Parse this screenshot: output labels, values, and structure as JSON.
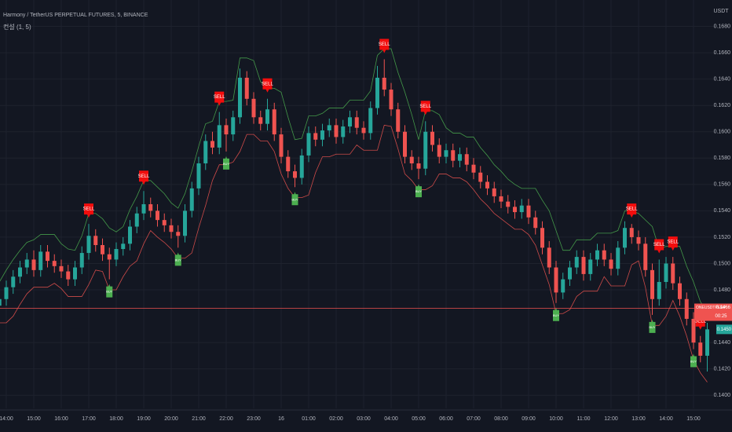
{
  "chart_data": {
    "type": "candlestick",
    "title": "Harmony / TetherUS PERPETUAL FUTURES, 5, BINANCE",
    "indicator": "컨설 (1, 5)",
    "currency": "USDT",
    "up_color": "#26a69a",
    "down_color": "#ef5350",
    "ylim": [
      0.139,
      0.17
    ],
    "yticks": [
      {
        "value": 0.14,
        "label": "0.1400"
      },
      {
        "value": 0.142,
        "label": "0.1420"
      },
      {
        "value": 0.144,
        "label": "0.1440"
      },
      {
        "value": 0.148,
        "label": "0.1480"
      },
      {
        "value": 0.15,
        "label": "0.1500"
      },
      {
        "value": 0.152,
        "label": "0.1520"
      },
      {
        "value": 0.154,
        "label": "0.1540"
      },
      {
        "value": 0.156,
        "label": "0.1560"
      },
      {
        "value": 0.158,
        "label": "0.1580"
      },
      {
        "value": 0.16,
        "label": "0.1600"
      },
      {
        "value": 0.162,
        "label": "0.1620"
      },
      {
        "value": 0.164,
        "label": "0.1640"
      },
      {
        "value": 0.166,
        "label": "0.1660"
      },
      {
        "value": 0.168,
        "label": "0.1680"
      }
    ],
    "grid": true,
    "categories": [
      null,
      "14:00",
      null,
      null,
      null,
      "15:00",
      null,
      null,
      null,
      "16:00",
      null,
      null,
      null,
      "17:00",
      null,
      null,
      null,
      "18:00",
      null,
      null,
      null,
      "19:00",
      null,
      null,
      null,
      "20:00",
      null,
      null,
      null,
      "21:00",
      null,
      null,
      null,
      "22:00",
      null,
      null,
      null,
      "23:00",
      null,
      null,
      null,
      "16",
      null,
      null,
      null,
      "01:00",
      null,
      null,
      null,
      "02:00",
      null,
      null,
      null,
      "03:00",
      null,
      null,
      null,
      "04:00",
      null,
      null,
      null,
      "05:00",
      null,
      null,
      null,
      "06:00",
      null,
      null,
      null,
      "07:00",
      null,
      null,
      null,
      "08:00",
      null,
      null,
      null,
      "09:00",
      null,
      null,
      null,
      "10:00",
      null,
      null,
      null,
      "11:00",
      null,
      null,
      null,
      "12:00",
      null,
      null,
      null,
      "13:00",
      null,
      null,
      null,
      "14:00",
      null,
      null,
      null,
      "15:00",
      null,
      null
    ],
    "ohlc": [
      [
        0.1468,
        0.1478,
        0.1463,
        0.1473
      ],
      [
        0.1473,
        0.1487,
        0.1468,
        0.1482
      ],
      [
        0.1482,
        0.1495,
        0.1477,
        0.149
      ],
      [
        0.149,
        0.1502,
        0.1485,
        0.1497
      ],
      [
        0.1497,
        0.1508,
        0.1492,
        0.1503
      ],
      [
        0.1503,
        0.151,
        0.149,
        0.1495
      ],
      [
        0.1495,
        0.1514,
        0.149,
        0.1509
      ],
      [
        0.1509,
        0.1514,
        0.1497,
        0.1502
      ],
      [
        0.1502,
        0.1507,
        0.1493,
        0.1498
      ],
      [
        0.1498,
        0.1503,
        0.1489,
        0.1494
      ],
      [
        0.1494,
        0.1499,
        0.1483,
        0.1488
      ],
      [
        0.1488,
        0.1502,
        0.1483,
        0.1497
      ],
      [
        0.1497,
        0.1513,
        0.1492,
        0.1508
      ],
      [
        0.1508,
        0.153,
        0.1503,
        0.1521
      ],
      [
        0.1521,
        0.1526,
        0.1509,
        0.1514
      ],
      [
        0.1514,
        0.1519,
        0.1502,
        0.1507
      ],
      [
        0.1507,
        0.1512,
        0.1488,
        0.1503
      ],
      [
        0.1503,
        0.1516,
        0.1498,
        0.1511
      ],
      [
        0.1511,
        0.152,
        0.1506,
        0.1515
      ],
      [
        0.1515,
        0.1533,
        0.151,
        0.1528
      ],
      [
        0.1528,
        0.1543,
        0.1523,
        0.1538
      ],
      [
        0.1538,
        0.1555,
        0.1533,
        0.1545
      ],
      [
        0.1545,
        0.155,
        0.1535,
        0.154
      ],
      [
        0.154,
        0.1545,
        0.1528,
        0.1533
      ],
      [
        0.1533,
        0.1538,
        0.1524,
        0.1529
      ],
      [
        0.1529,
        0.1534,
        0.1519,
        0.1524
      ],
      [
        0.1524,
        0.1529,
        0.1512,
        0.1521
      ],
      [
        0.1521,
        0.1545,
        0.1516,
        0.154
      ],
      [
        0.154,
        0.1562,
        0.1535,
        0.1557
      ],
      [
        0.1557,
        0.1581,
        0.1552,
        0.1576
      ],
      [
        0.1576,
        0.1598,
        0.1571,
        0.1593
      ],
      [
        0.1593,
        0.16,
        0.1583,
        0.1588
      ],
      [
        0.1588,
        0.1615,
        0.1583,
        0.1605
      ],
      [
        0.1605,
        0.161,
        0.1585,
        0.1598
      ],
      [
        0.1598,
        0.1616,
        0.1593,
        0.1611
      ],
      [
        0.1611,
        0.1648,
        0.1606,
        0.1641
      ],
      [
        0.1641,
        0.1646,
        0.162,
        0.1625
      ],
      [
        0.1625,
        0.163,
        0.1606,
        0.1611
      ],
      [
        0.1611,
        0.1616,
        0.1601,
        0.1606
      ],
      [
        0.1606,
        0.1625,
        0.1601,
        0.1617
      ],
      [
        0.1617,
        0.1622,
        0.1593,
        0.1598
      ],
      [
        0.1598,
        0.1603,
        0.1576,
        0.1581
      ],
      [
        0.1581,
        0.1586,
        0.1565,
        0.157
      ],
      [
        0.157,
        0.1575,
        0.1558,
        0.1565
      ],
      [
        0.1565,
        0.1587,
        0.156,
        0.1582
      ],
      [
        0.1582,
        0.1604,
        0.1577,
        0.1599
      ],
      [
        0.1599,
        0.1604,
        0.1589,
        0.1594
      ],
      [
        0.1594,
        0.1606,
        0.1589,
        0.1601
      ],
      [
        0.1601,
        0.161,
        0.1596,
        0.1605
      ],
      [
        0.1605,
        0.161,
        0.1591,
        0.1596
      ],
      [
        0.1596,
        0.1609,
        0.1591,
        0.1604
      ],
      [
        0.1604,
        0.1616,
        0.1599,
        0.1611
      ],
      [
        0.1611,
        0.1616,
        0.1598,
        0.1603
      ],
      [
        0.1603,
        0.1608,
        0.1594,
        0.1599
      ],
      [
        0.1599,
        0.1623,
        0.1594,
        0.1618
      ],
      [
        0.1618,
        0.165,
        0.1613,
        0.1641
      ],
      [
        0.1641,
        0.1655,
        0.1627,
        0.1632
      ],
      [
        0.1632,
        0.1637,
        0.1612,
        0.1617
      ],
      [
        0.1617,
        0.1622,
        0.1595,
        0.16
      ],
      [
        0.16,
        0.1605,
        0.1576,
        0.1581
      ],
      [
        0.1581,
        0.1586,
        0.1571,
        0.1576
      ],
      [
        0.1576,
        0.1581,
        0.1564,
        0.1572
      ],
      [
        0.1572,
        0.1608,
        0.1567,
        0.16
      ],
      [
        0.16,
        0.1605,
        0.1585,
        0.159
      ],
      [
        0.159,
        0.1595,
        0.1576,
        0.1581
      ],
      [
        0.1581,
        0.1591,
        0.1576,
        0.1586
      ],
      [
        0.1586,
        0.1591,
        0.1573,
        0.1578
      ],
      [
        0.1578,
        0.1588,
        0.1573,
        0.1583
      ],
      [
        0.1583,
        0.1588,
        0.157,
        0.1575
      ],
      [
        0.1575,
        0.158,
        0.1564,
        0.1569
      ],
      [
        0.1569,
        0.1574,
        0.1557,
        0.1562
      ],
      [
        0.1562,
        0.1567,
        0.1552,
        0.1557
      ],
      [
        0.1557,
        0.1562,
        0.1546,
        0.1551
      ],
      [
        0.1551,
        0.1556,
        0.1542,
        0.1547
      ],
      [
        0.1547,
        0.1552,
        0.1538,
        0.1543
      ],
      [
        0.1543,
        0.1548,
        0.1534,
        0.1539
      ],
      [
        0.1539,
        0.1549,
        0.1534,
        0.1544
      ],
      [
        0.1544,
        0.1549,
        0.153,
        0.1535
      ],
      [
        0.1535,
        0.154,
        0.1522,
        0.1527
      ],
      [
        0.1527,
        0.1532,
        0.1507,
        0.1512
      ],
      [
        0.1512,
        0.1517,
        0.1492,
        0.1497
      ],
      [
        0.1497,
        0.1502,
        0.147,
        0.1478
      ],
      [
        0.1478,
        0.1493,
        0.1473,
        0.1488
      ],
      [
        0.1488,
        0.1502,
        0.1483,
        0.1497
      ],
      [
        0.1497,
        0.151,
        0.1492,
        0.1505
      ],
      [
        0.1505,
        0.151,
        0.1487,
        0.1492
      ],
      [
        0.1492,
        0.1508,
        0.1487,
        0.1503
      ],
      [
        0.1503,
        0.1515,
        0.1498,
        0.151
      ],
      [
        0.151,
        0.1515,
        0.1498,
        0.1503
      ],
      [
        0.1503,
        0.1508,
        0.1491,
        0.1496
      ],
      [
        0.1496,
        0.1517,
        0.1491,
        0.1512
      ],
      [
        0.1512,
        0.1532,
        0.1507,
        0.1527
      ],
      [
        0.1527,
        0.153,
        0.1515,
        0.152
      ],
      [
        0.152,
        0.1525,
        0.151,
        0.1515
      ],
      [
        0.1515,
        0.152,
        0.149,
        0.1495
      ],
      [
        0.1495,
        0.15,
        0.1461,
        0.1473
      ],
      [
        0.1473,
        0.1503,
        0.1468,
        0.1486
      ],
      [
        0.1486,
        0.1505,
        0.1481,
        0.15
      ],
      [
        0.15,
        0.1505,
        0.148,
        0.1485
      ],
      [
        0.1485,
        0.149,
        0.1468,
        0.1473
      ],
      [
        0.1473,
        0.1478,
        0.1453,
        0.1458
      ],
      [
        0.1458,
        0.1463,
        0.1435,
        0.144
      ],
      [
        0.144,
        0.1445,
        0.1425,
        0.143
      ],
      [
        0.143,
        0.1455,
        0.1418,
        0.145
      ]
    ],
    "bands": [
      {
        "color": "#4caf50",
        "values": [
          0.1486,
          0.1495,
          0.1503,
          0.151,
          0.1516,
          0.1518,
          0.1522,
          0.1522,
          0.1522,
          0.1515,
          0.1511,
          0.151,
          0.1521,
          0.1538,
          0.1538,
          0.1534,
          0.1527,
          0.1524,
          0.1528,
          0.1541,
          0.1551,
          0.1563,
          0.1563,
          0.1558,
          0.1553,
          0.1546,
          0.1542,
          0.1553,
          0.157,
          0.1589,
          0.1606,
          0.1608,
          0.1623,
          0.1623,
          0.1624,
          0.1656,
          0.1656,
          0.1654,
          0.1638,
          0.1633,
          0.1633,
          0.163,
          0.1611,
          0.1594,
          0.1595,
          0.1612,
          0.1612,
          0.1614,
          0.1618,
          0.1618,
          0.1618,
          0.1624,
          0.1624,
          0.1624,
          0.1631,
          0.1658,
          0.1663,
          0.1663,
          0.1645,
          0.163,
          0.1613,
          0.1594,
          0.1616,
          0.1616,
          0.1613,
          0.1603,
          0.1599,
          0.1599,
          0.1596,
          0.1596,
          0.1588,
          0.1582,
          0.1575,
          0.157,
          0.1564,
          0.156,
          0.1557,
          0.1557,
          0.1557,
          0.1548,
          0.154,
          0.1525,
          0.151,
          0.151,
          0.1518,
          0.1518,
          0.1518,
          0.1523,
          0.1523,
          0.1523,
          0.1525,
          0.154,
          0.154,
          0.1538,
          0.1533,
          0.1528,
          0.1511,
          0.1513,
          0.1513,
          0.1513,
          0.1498,
          0.1486,
          0.1471,
          0.1463
        ]
      },
      {
        "color": "#ef5350",
        "values": [
          0.1455,
          0.1455,
          0.146,
          0.1469,
          0.1477,
          0.1482,
          0.1482,
          0.1482,
          0.1485,
          0.1481,
          0.1475,
          0.1475,
          0.1475,
          0.1484,
          0.1495,
          0.1494,
          0.148,
          0.148,
          0.149,
          0.1498,
          0.1502,
          0.1515,
          0.1525,
          0.152,
          0.1516,
          0.1511,
          0.1504,
          0.1504,
          0.1508,
          0.1527,
          0.1544,
          0.1563,
          0.1575,
          0.1575,
          0.1577,
          0.1585,
          0.1598,
          0.1598,
          0.1593,
          0.1593,
          0.1585,
          0.1568,
          0.1557,
          0.155,
          0.155,
          0.1552,
          0.1569,
          0.1581,
          0.1581,
          0.1583,
          0.1583,
          0.1583,
          0.159,
          0.1586,
          0.1586,
          0.1586,
          0.1605,
          0.1604,
          0.1587,
          0.1568,
          0.1563,
          0.1556,
          0.1556,
          0.1559,
          0.1568,
          0.1568,
          0.1565,
          0.1565,
          0.1562,
          0.1556,
          0.1549,
          0.1544,
          0.1538,
          0.1534,
          0.153,
          0.1526,
          0.1526,
          0.1522,
          0.1514,
          0.1499,
          0.1484,
          0.1462,
          0.1462,
          0.1465,
          0.1475,
          0.1479,
          0.1479,
          0.1479,
          0.149,
          0.1483,
          0.1483,
          0.1483,
          0.1499,
          0.1502,
          0.1482,
          0.1453,
          0.1453,
          0.146,
          0.1472,
          0.146,
          0.1445,
          0.1427,
          0.1417,
          0.141
        ]
      }
    ],
    "signals": [
      null,
      null,
      null,
      null,
      null,
      null,
      null,
      null,
      null,
      null,
      null,
      null,
      null,
      "SELL",
      null,
      null,
      "BUY",
      null,
      null,
      null,
      null,
      "SELL",
      null,
      null,
      null,
      null,
      "BUY",
      null,
      null,
      null,
      null,
      null,
      "SELL",
      "BUY",
      null,
      null,
      null,
      null,
      null,
      "SELL",
      null,
      null,
      null,
      "BUY",
      null,
      null,
      null,
      null,
      null,
      null,
      null,
      null,
      null,
      null,
      null,
      null,
      "SELL",
      null,
      null,
      null,
      null,
      "BUY",
      "SELL",
      null,
      null,
      null,
      null,
      null,
      null,
      null,
      null,
      null,
      null,
      null,
      null,
      null,
      null,
      null,
      null,
      null,
      null,
      "BUY",
      null,
      null,
      null,
      null,
      null,
      null,
      null,
      null,
      null,
      null,
      "SELL",
      null,
      null,
      "BUY",
      "SELL",
      null,
      "SELL",
      null,
      null,
      "BUY",
      "SELL",
      null
    ],
    "last_price": {
      "symbol": "ONEUSDTPERP",
      "value": 0.1466,
      "countdown": "00:25",
      "color": "#ef5350"
    },
    "alt_price": {
      "value": 0.145,
      "label": "0.1450",
      "color": "#26a69a"
    }
  }
}
